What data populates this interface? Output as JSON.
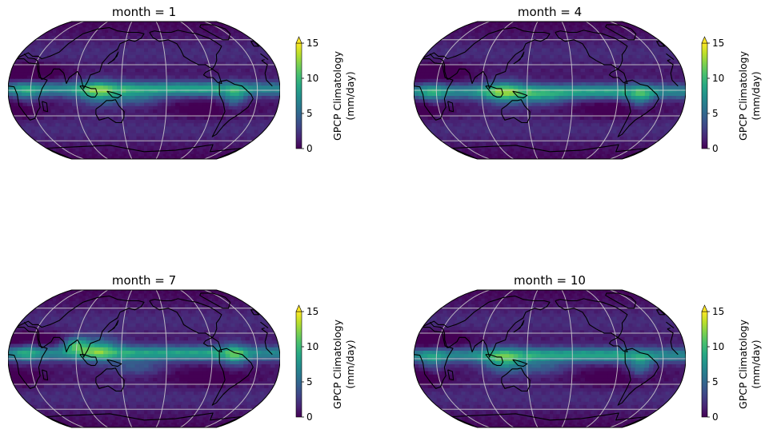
{
  "colorbar": {
    "label_line1": "GPCP Climatology",
    "label_line2": "(mm/day)",
    "ticks": [
      "0",
      "5",
      "10",
      "15"
    ],
    "tick_values": [
      0,
      5,
      10,
      15
    ],
    "vmin": 0,
    "vmax": 15,
    "extend": "max",
    "colormap": "viridis"
  },
  "panels": [
    {
      "title": "month = 1",
      "month": 1
    },
    {
      "title": "month = 4",
      "month": 4
    },
    {
      "title": "month = 7",
      "month": 7
    },
    {
      "title": "month = 10",
      "month": 10
    }
  ],
  "colors": {
    "viridis_low": "#440154",
    "viridis_mid": "#21918c",
    "viridis_high": "#fde725",
    "gridlines": "#d0d0d0",
    "coastlines": "#000000"
  }
}
